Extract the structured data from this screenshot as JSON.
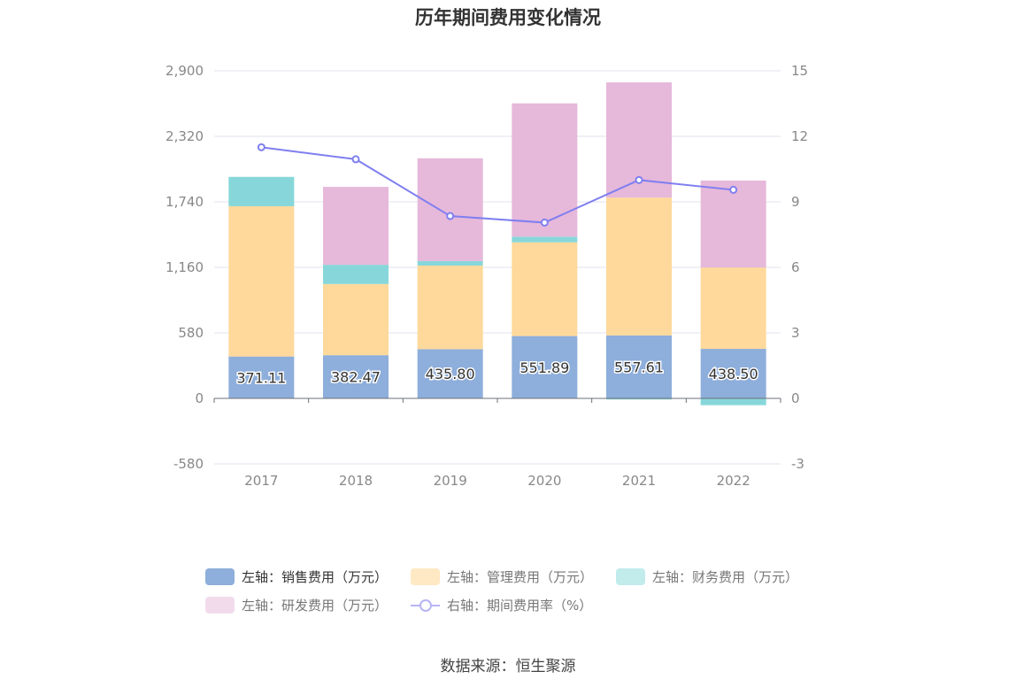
{
  "chart_data": {
    "type": "bar",
    "title": "历年期间费用变化情况",
    "categories": [
      "2017",
      "2018",
      "2019",
      "2020",
      "2021",
      "2022"
    ],
    "left_axis": {
      "ticks": [
        "2,900",
        "2,320",
        "1,740",
        "1,160",
        "580",
        "0",
        "-580"
      ],
      "range": [
        -580,
        2900
      ]
    },
    "right_axis": {
      "ticks": [
        "15",
        "12",
        "9",
        "6",
        "3",
        "0",
        "-3"
      ],
      "range": [
        -3,
        15
      ]
    },
    "series": [
      {
        "name": "左轴：销售费用（万元）",
        "type": "bar",
        "axis": "left",
        "color": "#8eaedb",
        "values": [
          371.11,
          382.47,
          435.8,
          551.89,
          557.61,
          438.5
        ],
        "labels": [
          "371.11",
          "382.47",
          "435.80",
          "551.89",
          "557.61",
          "438.50"
        ]
      },
      {
        "name": "左轴：管理费用（万元）",
        "type": "bar",
        "axis": "left",
        "color": "#ffd99b",
        "values": [
          1330,
          630,
          740,
          830,
          1220,
          720
        ]
      },
      {
        "name": "左轴：财务费用（万元）",
        "type": "bar",
        "axis": "left",
        "color": "#87d7da",
        "values": [
          260,
          170,
          40,
          50,
          -10,
          -60
        ]
      },
      {
        "name": "左轴：研发费用（万元）",
        "type": "bar",
        "axis": "left",
        "color": "#e6b8da",
        "values": [
          0,
          690,
          910,
          1180,
          1020,
          770
        ]
      },
      {
        "name": "右轴：期间费用率（%）",
        "type": "line",
        "axis": "right",
        "color": "#7f7ff0",
        "values": [
          11.5,
          10.95,
          8.35,
          8.05,
          10.0,
          9.55
        ]
      }
    ],
    "legend_position": "bottom",
    "grid": true
  },
  "legend": {
    "items": [
      {
        "label": "左轴：销售费用（万元）",
        "color": "#8eaedb",
        "kind": "bar"
      },
      {
        "label": "左轴：管理费用（万元）",
        "color": "#ffe8c4",
        "kind": "bar"
      },
      {
        "label": "左轴：财务费用（万元）",
        "color": "#c2ebec",
        "kind": "bar"
      },
      {
        "label": "左轴：研发费用（万元）",
        "color": "#f2dcec",
        "kind": "bar"
      },
      {
        "label": "右轴：期间费用率（%）",
        "color": "#b7b4f5",
        "kind": "line"
      }
    ]
  },
  "source": "数据来源：恒生聚源"
}
